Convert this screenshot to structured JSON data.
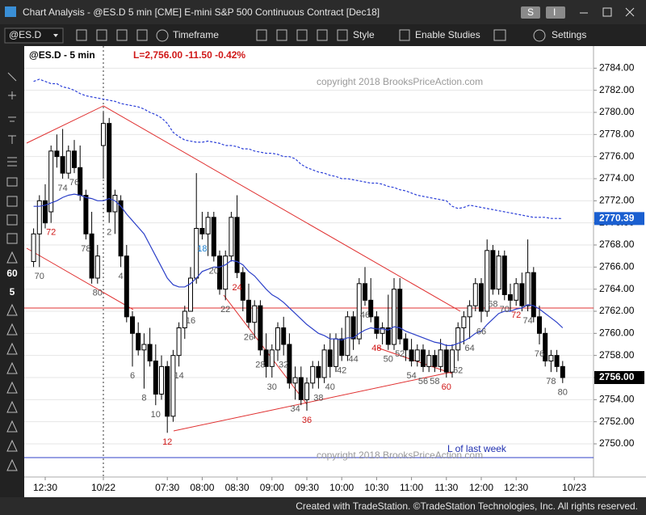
{
  "window": {
    "title": "Chart Analysis - @ES.D 5 min [CME] E-mini S&P 500 Continuous Contract [Dec18]",
    "buttons": [
      "S",
      "I"
    ]
  },
  "toolbar": {
    "symbol": "@ES.D",
    "items": [
      "Timeframe",
      "Style",
      "Enable Studies",
      "Settings"
    ],
    "side_buttons": [
      "60",
      "5"
    ]
  },
  "footer": "Created with TradeStation. ©TradeStation Technologies, Inc. All rights reserved.",
  "chart_data": {
    "type": "candlestick",
    "title": "@ES.D - 5 min",
    "subtitle": "L=2,756.00  -11.50  -0.42%",
    "annotations": [
      "copyright 2018 BrooksPriceAction.com",
      "copyright 2018 BrooksPriceAction.com",
      "L of last week"
    ],
    "categories": [
      null,
      "70",
      null,
      "72",
      null,
      "74",
      null,
      "76",
      null,
      "78",
      null,
      "80",
      null,
      "2",
      null,
      "4",
      null,
      "6",
      null,
      "8",
      null,
      "10",
      null,
      "12",
      null,
      "14",
      null,
      "16",
      null,
      "18",
      null,
      "20",
      null,
      "22",
      null,
      "24",
      null,
      "26",
      null,
      "28",
      null,
      "30",
      null,
      "32",
      null,
      "34",
      null,
      "36",
      null,
      "38",
      null,
      "40",
      null,
      "42",
      null,
      "44",
      null,
      "46",
      null,
      "48",
      null,
      "50",
      null,
      "52",
      null,
      "54",
      null,
      "56",
      null,
      "58",
      null,
      "60",
      null,
      "62",
      null,
      "64",
      null,
      "66",
      null,
      "68",
      null,
      "70",
      null,
      "72",
      null,
      "74",
      null,
      "76",
      null,
      "78",
      null,
      "80"
    ],
    "label_color": "#555555",
    "label_highlights": [
      {
        "color": "#d01818",
        "indices": [
          3,
          23,
          35,
          47,
          59,
          71,
          83
        ]
      },
      {
        "color": "#1a7fd0",
        "indices": [
          29
        ]
      }
    ],
    "open": [
      2766.5,
      2769,
      2772,
      2771,
      2776.5,
      2776,
      2774.5,
      2776.5,
      2775,
      2772.5,
      2769,
      2765,
      2777,
      2779,
      2771,
      2772,
      2767,
      2761.5,
      2760,
      2758.5,
      2759,
      2757.5,
      2754.5,
      2757,
      2752.5,
      2758,
      2760.5,
      2762,
      2765,
      2769.5,
      2769,
      2770.5,
      2767,
      2764,
      2767,
      2770.5,
      2765.5,
      2763,
      2761,
      2762.5,
      2758.5,
      2757,
      2758.5,
      2760.5,
      2759,
      2755.5,
      2756,
      2754,
      2755.5,
      2757,
      2756,
      2758.5,
      2757,
      2759.5,
      2758,
      2761.5,
      2759.5,
      2764.5,
      2763,
      2761.5,
      2760,
      2760.5,
      2759,
      2764,
      2759.5,
      2758.5,
      2757.5,
      2758.5,
      2757,
      2758,
      2757,
      2758.5,
      2756.5,
      2758.5,
      2760.5,
      2761.5,
      2762.5,
      2764.5,
      2762,
      2767.5,
      2764,
      2767,
      2763.5,
      2763,
      2764.5,
      2762.5,
      2765.5,
      2761.5,
      2760,
      2757.5,
      2758,
      2757
    ],
    "high": [
      2769.5,
      2772.5,
      2773.5,
      2777,
      2778,
      2778.5,
      2777,
      2777.5,
      2777,
      2773,
      2771,
      2768,
      2780,
      2779.5,
      2773,
      2772.5,
      2768,
      2762,
      2761,
      2760,
      2760.5,
      2759,
      2758,
      2757.5,
      2758.5,
      2761,
      2762.5,
      2766,
      2774.5,
      2771,
      2771,
      2771,
      2767.5,
      2767.5,
      2771,
      2772.5,
      2766,
      2764.5,
      2763,
      2763,
      2760,
      2759,
      2761,
      2761.5,
      2760,
      2757,
      2757,
      2756,
      2757.5,
      2757.5,
      2759,
      2760,
      2760,
      2760.5,
      2762,
      2762,
      2765,
      2766,
      2765,
      2762,
      2761,
      2763.5,
      2765,
      2765,
      2760,
      2759.5,
      2759,
      2759,
      2758.5,
      2758.5,
      2759.5,
      2759,
      2759,
      2761,
      2762,
      2763,
      2765,
      2765,
      2768.5,
      2768,
      2767.5,
      2767.5,
      2764.5,
      2765,
      2765.5,
      2768.5,
      2766,
      2762.5,
      2760.5,
      2758.5,
      2758.5,
      2757.5
    ],
    "low": [
      2766,
      2766,
      2769.5,
      2770,
      2775,
      2774,
      2774,
      2774.5,
      2772,
      2768.5,
      2764.5,
      2764.5,
      2774,
      2770,
      2769,
      2766,
      2761,
      2757,
      2758,
      2755,
      2757,
      2753.5,
      2754,
      2751,
      2752,
      2757,
      2759.5,
      2762,
      2764.5,
      2768.5,
      2767,
      2766.5,
      2763.5,
      2763,
      2766.5,
      2765,
      2762,
      2760.5,
      2759.5,
      2758,
      2756,
      2756,
      2757.5,
      2758,
      2755,
      2754,
      2753.5,
      2753,
      2755,
      2755,
      2755.5,
      2756,
      2756.5,
      2757.5,
      2757.5,
      2758.5,
      2759,
      2762.5,
      2761,
      2759.5,
      2759,
      2758.5,
      2758.5,
      2759,
      2757.5,
      2757,
      2757,
      2756.5,
      2756.5,
      2756.5,
      2756.5,
      2756,
      2756,
      2757.5,
      2759,
      2759.5,
      2762,
      2761,
      2761.5,
      2763.5,
      2763.5,
      2763,
      2762,
      2762.5,
      2762,
      2762,
      2761,
      2759,
      2757,
      2756.5,
      2756.5,
      2755.5
    ],
    "close": [
      2769,
      2772,
      2770,
      2776.5,
      2776,
      2774.5,
      2776.5,
      2775,
      2772.5,
      2769,
      2765,
      2767,
      2779,
      2771,
      2772.5,
      2767,
      2761.5,
      2760,
      2758.5,
      2759,
      2757.5,
      2754.5,
      2757,
      2752.5,
      2758,
      2760.5,
      2762,
      2765,
      2769.5,
      2769,
      2770.5,
      2767,
      2764,
      2767,
      2770.5,
      2765.5,
      2763,
      2761,
      2762.5,
      2758.5,
      2757,
      2758.5,
      2760.5,
      2759,
      2755.5,
      2756,
      2754,
      2755.5,
      2757,
      2756,
      2758.5,
      2757,
      2759.5,
      2758,
      2761.5,
      2759.5,
      2764.5,
      2763,
      2761.5,
      2760,
      2760.5,
      2759,
      2764,
      2759.5,
      2758.5,
      2757.5,
      2758.5,
      2757,
      2758,
      2757,
      2758.5,
      2756.5,
      2758.5,
      2760.5,
      2761.5,
      2762.5,
      2764.5,
      2762,
      2767.5,
      2764,
      2767,
      2763.5,
      2763,
      2764.5,
      2762.5,
      2765.5,
      2761.5,
      2760,
      2757.5,
      2758,
      2757,
      2756
    ],
    "up_color": "#ffffff",
    "down_color": "#000000",
    "overlays": [
      {
        "color": "#2b3fc8",
        "dashed": false,
        "values": [
          2771.5,
          2771.5,
          2771.6,
          2771.8,
          2772,
          2772.3,
          2772.5,
          2772.6,
          2772.5,
          2772.3,
          2772.2,
          2772,
          2772,
          2772.2,
          2772,
          2771.5,
          2770.8,
          2770.2,
          2769.6,
          2769,
          2768,
          2767,
          2766,
          2765,
          2764.4,
          2764.2,
          2764.2,
          2764.5,
          2765,
          2765.6,
          2765.8,
          2766,
          2766,
          2766.2,
          2766.6,
          2766.5,
          2766.2,
          2765.6,
          2765.2,
          2764.6,
          2764,
          2763.5,
          2763.2,
          2762.8,
          2762.3,
          2761.8,
          2761.3,
          2760.8,
          2760.4,
          2760,
          2759.8,
          2759.5,
          2759.5,
          2759.4,
          2759.6,
          2759.6,
          2760,
          2760.3,
          2760.5,
          2760.4,
          2760.4,
          2760.3,
          2760.6,
          2760.5,
          2760.2,
          2760,
          2759.8,
          2759.6,
          2759.4,
          2759.2,
          2759.1,
          2758.9,
          2758.9,
          2759.1,
          2759.3,
          2759.6,
          2760,
          2760.2,
          2760.8,
          2761.3,
          2761.8,
          2762,
          2762,
          2762.2,
          2762.3,
          2762.6,
          2762.5,
          2762.2,
          2761.8,
          2761.4,
          2761,
          2760.5
        ]
      },
      {
        "color": "#2b3fd8",
        "dashed": true,
        "values": [
          2782.8,
          2783,
          2782.8,
          2782.6,
          2782.6,
          2782.3,
          2782.2,
          2782,
          2781.7,
          2781.5,
          2781.4,
          2781.3,
          2781.2,
          2781.1,
          2781,
          2780.8,
          2780.7,
          2780.6,
          2780.5,
          2780.3,
          2780,
          2779.8,
          2779.5,
          2779,
          2778.2,
          2777.8,
          2777.5,
          2777.4,
          2777.3,
          2777.3,
          2777.4,
          2777.3,
          2777.2,
          2777,
          2777,
          2776.9,
          2776.7,
          2776.7,
          2776.5,
          2776.4,
          2776.3,
          2776.3,
          2776.2,
          2776,
          2776,
          2775.8,
          2775.3,
          2775,
          2774.8,
          2774.6,
          2774.5,
          2774.3,
          2774.2,
          2774,
          2774,
          2773.9,
          2773.8,
          2773.7,
          2773.6,
          2773.6,
          2773.5,
          2773.3,
          2773.2,
          2773,
          2772.9,
          2772.7,
          2772.5,
          2772.4,
          2772.3,
          2772.2,
          2772.1,
          2772,
          2771.5,
          2771.3,
          2771.4,
          2771.6,
          2771.5,
          2771.4,
          2771.3,
          2771.2,
          2771.1,
          2771,
          2770.9,
          2770.8,
          2770.7,
          2770.6,
          2770.5,
          2770.5,
          2770.5,
          2770.4,
          2770.4,
          2770.39
        ]
      }
    ],
    "price_flags": [
      {
        "value": 2770.39,
        "label": "2770.39",
        "color": "#1a5fd0"
      },
      {
        "value": 2756,
        "label": "2756.00",
        "color": "#000000"
      }
    ],
    "ylim": [
      2747,
      2786
    ],
    "yticks": [
      {
        "value": 2750,
        "label": "2750.00"
      },
      {
        "value": 2752,
        "label": "2752.00"
      },
      {
        "value": 2754,
        "label": "2754.00"
      },
      {
        "value": 2756,
        "label": "2756.00"
      },
      {
        "value": 2758,
        "label": "2758.00"
      },
      {
        "value": 2760,
        "label": "2760.00"
      },
      {
        "value": 2762,
        "label": "2762.00"
      },
      {
        "value": 2764,
        "label": "2764.00"
      },
      {
        "value": 2766,
        "label": "2766.00"
      },
      {
        "value": 2768,
        "label": "2768.00"
      },
      {
        "value": 2770,
        "label": "2770.00"
      },
      {
        "value": 2772,
        "label": "2772.00"
      },
      {
        "value": 2774,
        "label": "2774.00"
      },
      {
        "value": 2776,
        "label": "2776.00"
      },
      {
        "value": 2778,
        "label": "2778.00"
      },
      {
        "value": 2780,
        "label": "2780.00"
      },
      {
        "value": 2782,
        "label": "2782.00"
      },
      {
        "value": 2784,
        "label": "2784.00"
      }
    ],
    "xticks": [
      {
        "value": 2,
        "label": "12:30"
      },
      {
        "value": 12,
        "label": "10/22"
      },
      {
        "value": 23,
        "label": "07:30"
      },
      {
        "value": 29,
        "label": "08:00"
      },
      {
        "value": 35,
        "label": "08:30"
      },
      {
        "value": 41,
        "label": "09:00"
      },
      {
        "value": 47,
        "label": "09:30"
      },
      {
        "value": 53,
        "label": "10:00"
      },
      {
        "value": 59,
        "label": "10:30"
      },
      {
        "value": 65,
        "label": "11:00"
      },
      {
        "value": 71,
        "label": "11:30"
      },
      {
        "value": 77,
        "label": "12:00"
      },
      {
        "value": 83,
        "label": "12:30"
      },
      {
        "value": 93,
        "label": "10/23"
      }
    ],
    "grid": true
  }
}
